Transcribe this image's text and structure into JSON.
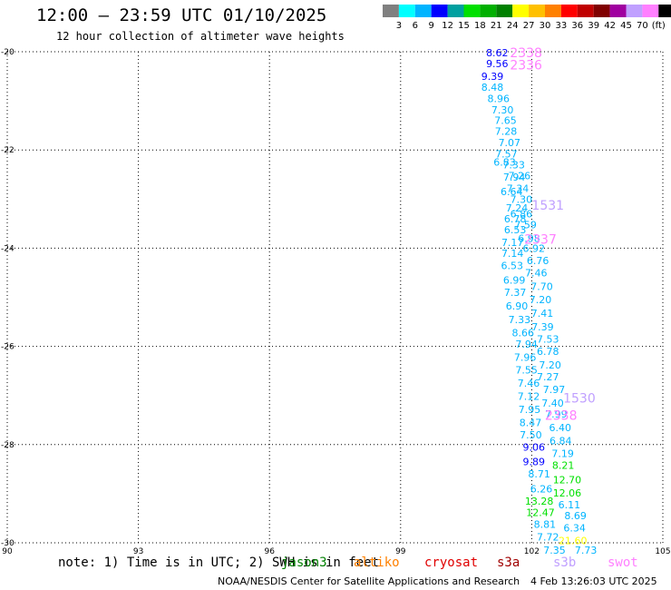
{
  "header": {
    "title": "12:00 – 23:59 UTC 01/10/2025",
    "subtitle": "12 hour collection of altimeter wave heights"
  },
  "colorbar": {
    "colors": [
      "#808080",
      "#00ffff",
      "#00b4ff",
      "#0000ff",
      "#00a0a0",
      "#00e000",
      "#00b000",
      "#008000",
      "#ffff00",
      "#ffc000",
      "#ff8000",
      "#ff0000",
      "#c00000",
      "#800000",
      "#a000a0",
      "#c0a0ff",
      "#ff80ff",
      "#000000"
    ],
    "labels": [
      "3",
      "6",
      "9",
      "12",
      "15",
      "18",
      "21",
      "24",
      "27",
      "30",
      "33",
      "36",
      "39",
      "42",
      "45",
      "70",
      "(ft)"
    ]
  },
  "footer": {
    "note": "note: 1) Time is in UTC; 2) SWH is in feet",
    "satellites": [
      {
        "name": "jason3",
        "color": "#008000"
      },
      {
        "name": "altiko",
        "color": "#ff8000"
      },
      {
        "name": "cryosat",
        "color": "#e00000"
      },
      {
        "name": "s3a",
        "color": "#a00000"
      },
      {
        "name": "s3b",
        "color": "#c0a0ff"
      },
      {
        "name": "swot",
        "color": "#ff80ff"
      }
    ],
    "credit": "NOAA/NESDIS Center for Satellite Applications and Research",
    "timestamp": "4 Feb 13:26:03 UTC 2025"
  },
  "chart_data": {
    "type": "scatter",
    "title": "12:00 – 23:59 UTC 01/10/2025",
    "subtitle": "12 hour collection of altimeter wave heights",
    "xlim": [
      90,
      105
    ],
    "ylim": [
      -30,
      -20
    ],
    "xticks": [
      "90",
      "93",
      "96",
      "99",
      "102",
      "105"
    ],
    "yticks": [
      "-20",
      "-22",
      "-24",
      "-26",
      "-28",
      "-30"
    ],
    "grid": true,
    "series": [
      {
        "name": "track",
        "label_type": "value",
        "points": [
          {
            "x": 101.21,
            "y": -20.02,
            "v": "8.62",
            "c": "#0000ff"
          },
          {
            "x": 101.21,
            "y": -20.24,
            "v": "9.56",
            "c": "#0000ff"
          },
          {
            "x": 101.1,
            "y": -20.5,
            "v": "9.39",
            "c": "#0000ff"
          },
          {
            "x": 101.1,
            "y": -20.72,
            "v": "8.48",
            "c": "#00b4ff"
          },
          {
            "x": 101.24,
            "y": -20.95,
            "v": "8.96",
            "c": "#00b4ff"
          },
          {
            "x": 101.33,
            "y": -21.18,
            "v": "7.30",
            "c": "#00b4ff"
          },
          {
            "x": 101.4,
            "y": -21.4,
            "v": "7.65",
            "c": "#00b4ff"
          },
          {
            "x": 101.41,
            "y": -21.62,
            "v": "7.28",
            "c": "#00b4ff"
          },
          {
            "x": 101.49,
            "y": -21.85,
            "v": "7.07",
            "c": "#00b4ff"
          },
          {
            "x": 101.42,
            "y": -22.08,
            "v": "7.57",
            "c": "#00b4ff"
          },
          {
            "x": 101.59,
            "y": -22.3,
            "v": "7.33",
            "c": "#00b4ff"
          },
          {
            "x": 101.72,
            "y": -22.52,
            "v": "7.26",
            "c": "#00b4ff"
          },
          {
            "x": 101.68,
            "y": -22.78,
            "v": "7.34",
            "c": "#00b4ff"
          },
          {
            "x": 101.76,
            "y": -23.0,
            "v": "7.30",
            "c": "#00b4ff"
          },
          {
            "x": 101.76,
            "y": -23.3,
            "v": "6.86",
            "c": "#00b4ff"
          },
          {
            "x": 101.86,
            "y": -23.52,
            "v": "7.59",
            "c": "#00b4ff"
          },
          {
            "x": 101.94,
            "y": -23.8,
            "v": "6.98",
            "c": "#00b4ff"
          },
          {
            "x": 102.05,
            "y": -24.0,
            "v": "6.92",
            "c": "#00b4ff"
          },
          {
            "x": 102.14,
            "y": -24.25,
            "v": "6.76",
            "c": "#00b4ff"
          },
          {
            "x": 102.1,
            "y": -24.5,
            "v": "7.46",
            "c": "#00b4ff"
          },
          {
            "x": 102.23,
            "y": -24.78,
            "v": "7.70",
            "c": "#00b4ff"
          },
          {
            "x": 102.2,
            "y": -25.05,
            "v": "7.20",
            "c": "#00b4ff"
          },
          {
            "x": 102.24,
            "y": -25.32,
            "v": "7.41",
            "c": "#00b4ff"
          },
          {
            "x": 102.25,
            "y": -25.6,
            "v": "7.39",
            "c": "#00b4ff"
          },
          {
            "x": 102.37,
            "y": -25.85,
            "v": "7.53",
            "c": "#00b4ff"
          },
          {
            "x": 102.37,
            "y": -26.1,
            "v": "6.78",
            "c": "#00b4ff"
          },
          {
            "x": 102.42,
            "y": -26.38,
            "v": "7.20",
            "c": "#00b4ff"
          },
          {
            "x": 102.37,
            "y": -26.62,
            "v": "7.27",
            "c": "#00b4ff"
          },
          {
            "x": 102.51,
            "y": -26.88,
            "v": "7.97",
            "c": "#00b4ff"
          },
          {
            "x": 102.48,
            "y": -27.15,
            "v": "7.40",
            "c": "#00b4ff"
          },
          {
            "x": 102.56,
            "y": -27.38,
            "v": "7.99",
            "c": "#00b4ff"
          },
          {
            "x": 102.65,
            "y": -27.65,
            "v": "6.40",
            "c": "#00b4ff"
          },
          {
            "x": 102.66,
            "y": -27.92,
            "v": "6.84",
            "c": "#00b4ff"
          },
          {
            "x": 102.71,
            "y": -28.18,
            "v": "7.19",
            "c": "#00b4ff"
          },
          {
            "x": 102.72,
            "y": -28.42,
            "v": "8.21",
            "c": "#00e000"
          },
          {
            "x": 102.81,
            "y": -28.72,
            "v": "12.70",
            "c": "#00e000"
          },
          {
            "x": 102.81,
            "y": -28.98,
            "v": "12.06",
            "c": "#00e000"
          },
          {
            "x": 102.86,
            "y": -29.22,
            "v": "6.11",
            "c": "#00b4ff"
          },
          {
            "x": 103.0,
            "y": -29.45,
            "v": "8.69",
            "c": "#00b4ff"
          },
          {
            "x": 102.98,
            "y": -29.7,
            "v": "6.34",
            "c": "#00b4ff"
          },
          {
            "x": 102.94,
            "y": -29.95,
            "v": "21.60",
            "c": "#ffff00"
          },
          {
            "x": 103.24,
            "y": -30.15,
            "v": "7.73",
            "c": "#00b4ff"
          }
        ]
      },
      {
        "name": "track",
        "label_type": "value",
        "points": [
          {
            "x": 101.6,
            "y": -22.55,
            "v": "7.94",
            "c": "#00b4ff"
          },
          {
            "x": 101.38,
            "y": -22.25,
            "v": "6.83",
            "c": "#00b4ff"
          },
          {
            "x": 101.54,
            "y": -22.85,
            "v": "6.64",
            "c": "#00b4ff"
          },
          {
            "x": 101.66,
            "y": -23.18,
            "v": "7.24",
            "c": "#00b4ff"
          },
          {
            "x": 101.62,
            "y": -23.4,
            "v": "6.78",
            "c": "#00b4ff"
          },
          {
            "x": 101.62,
            "y": -23.62,
            "v": "6.53",
            "c": "#00b4ff"
          },
          {
            "x": 101.56,
            "y": -23.88,
            "v": "7.17",
            "c": "#00b4ff"
          },
          {
            "x": 101.56,
            "y": -24.1,
            "v": "7.14",
            "c": "#00b4ff"
          },
          {
            "x": 101.55,
            "y": -24.35,
            "v": "6.53",
            "c": "#00b4ff"
          },
          {
            "x": 101.6,
            "y": -24.65,
            "v": "6.99",
            "c": "#00b4ff"
          },
          {
            "x": 101.62,
            "y": -24.9,
            "v": "7.37",
            "c": "#00b4ff"
          },
          {
            "x": 101.66,
            "y": -25.18,
            "v": "6.90",
            "c": "#00b4ff"
          },
          {
            "x": 101.72,
            "y": -25.45,
            "v": "7.33",
            "c": "#00b4ff"
          },
          {
            "x": 101.8,
            "y": -25.72,
            "v": "8.66",
            "c": "#00b4ff"
          },
          {
            "x": 101.88,
            "y": -25.95,
            "v": "7.94",
            "c": "#00b4ff"
          },
          {
            "x": 101.85,
            "y": -26.22,
            "v": "7.96",
            "c": "#00b4ff"
          },
          {
            "x": 101.88,
            "y": -26.48,
            "v": "7.55",
            "c": "#00b4ff"
          },
          {
            "x": 101.93,
            "y": -26.75,
            "v": "7.46",
            "c": "#00b4ff"
          },
          {
            "x": 101.93,
            "y": -27.02,
            "v": "7.12",
            "c": "#00b4ff"
          },
          {
            "x": 101.95,
            "y": -27.28,
            "v": "7.95",
            "c": "#00b4ff"
          },
          {
            "x": 101.97,
            "y": -27.55,
            "v": "8.47",
            "c": "#00b4ff"
          },
          {
            "x": 101.98,
            "y": -27.8,
            "v": "7.50",
            "c": "#00b4ff"
          },
          {
            "x": 102.05,
            "y": -28.05,
            "v": "9.06",
            "c": "#0000ff"
          },
          {
            "x": 102.05,
            "y": -28.35,
            "v": "9.89",
            "c": "#0000ff"
          },
          {
            "x": 102.17,
            "y": -28.6,
            "v": "8.71",
            "c": "#00b4ff"
          },
          {
            "x": 102.22,
            "y": -28.9,
            "v": "6.26",
            "c": "#00b4ff"
          },
          {
            "x": 102.17,
            "y": -29.15,
            "v": "13.28",
            "c": "#00e000"
          },
          {
            "x": 102.2,
            "y": -29.38,
            "v": "12.47",
            "c": "#00e000"
          },
          {
            "x": 102.3,
            "y": -29.62,
            "v": "8.81",
            "c": "#00b4ff"
          },
          {
            "x": 102.37,
            "y": -29.88,
            "v": "7.72",
            "c": "#00b4ff"
          },
          {
            "x": 102.52,
            "y": -30.15,
            "v": "7.35",
            "c": "#00b4ff"
          }
        ]
      },
      {
        "name": "swot-pass",
        "label_type": "time",
        "points": [
          {
            "x": 101.87,
            "y": -20.02,
            "v": "2338",
            "c": "#ff80ff"
          },
          {
            "x": 101.87,
            "y": -20.27,
            "v": "2336",
            "c": "#ff80ff"
          },
          {
            "x": 102.2,
            "y": -23.82,
            "v": "2337",
            "c": "#ff80ff"
          },
          {
            "x": 102.67,
            "y": -27.4,
            "v": "2338",
            "c": "#ff80ff"
          }
        ]
      },
      {
        "name": "s3b-pass",
        "label_type": "time",
        "points": [
          {
            "x": 102.37,
            "y": -23.12,
            "v": "1531",
            "c": "#c0a0ff"
          },
          {
            "x": 103.09,
            "y": -27.05,
            "v": "1530",
            "c": "#c0a0ff"
          }
        ]
      }
    ]
  }
}
